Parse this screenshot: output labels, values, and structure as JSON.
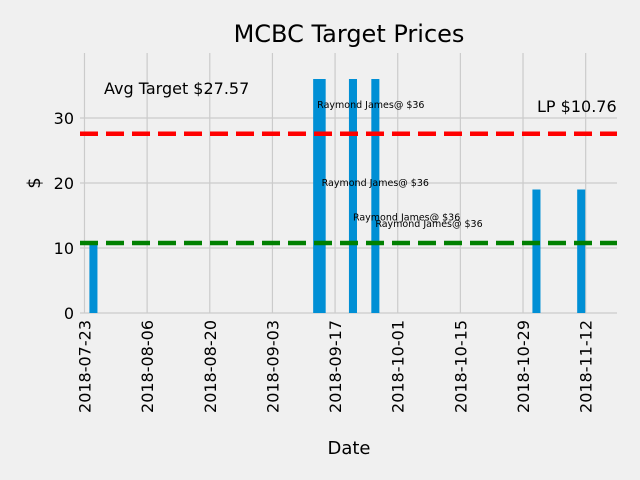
{
  "chart_data": {
    "type": "bar",
    "title": "MCBC Target Prices",
    "xlabel": "Date",
    "ylabel": "$",
    "xlim": [
      "2018-07-22",
      "2018-11-19"
    ],
    "ylim": [
      0,
      40
    ],
    "xticks": [
      "2018-07-23",
      "2018-08-06",
      "2018-08-20",
      "2018-09-03",
      "2018-09-17",
      "2018-10-01",
      "2018-10-15",
      "2018-10-29",
      "2018-11-12"
    ],
    "yticks": [
      0,
      10,
      20,
      30
    ],
    "grid": true,
    "bars": [
      {
        "date": "2018-07-25",
        "value": 11
      },
      {
        "date": "2018-09-13",
        "value": 36
      },
      {
        "date": "2018-09-14",
        "value": 36
      },
      {
        "date": "2018-09-21",
        "value": 36
      },
      {
        "date": "2018-09-26",
        "value": 36
      },
      {
        "date": "2018-11-01",
        "value": 19
      },
      {
        "date": "2018-11-11",
        "value": 19
      }
    ],
    "bar_color": "#008fd5",
    "lines": [
      {
        "label": "Avg Target $27.57",
        "y": 27.57,
        "color": "#ff0000",
        "style": "dashed"
      },
      {
        "label": "LP $10.76",
        "y": 10.76,
        "color": "#008000",
        "style": "dashed"
      }
    ],
    "annotations": [
      {
        "text": "Raymond James@ $36",
        "date": "2018-09-13",
        "y": 32
      },
      {
        "text": "Raymond James@ $36",
        "date": "2018-09-14",
        "y": 20
      },
      {
        "text": "Raymond James@ $36",
        "date": "2018-09-21",
        "y": 14.7
      },
      {
        "text": "Raymond James@ $36",
        "date": "2018-09-26",
        "y": 13.7
      }
    ]
  }
}
